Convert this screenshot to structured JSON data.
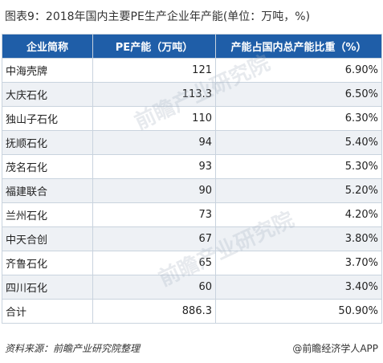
{
  "title": "图表9：2018年国内主要PE生产企业年产能(单位：万吨，%)",
  "table": {
    "headers": [
      "企业简称",
      "PE产能（万吨）",
      "产能占国内总产能比重（%）"
    ],
    "rows": [
      {
        "name": "中海壳牌",
        "capacity": "121",
        "share": "6.90%"
      },
      {
        "name": "大庆石化",
        "capacity": "113.3",
        "share": "6.50%"
      },
      {
        "name": "独山子石化",
        "capacity": "110",
        "share": "6.30%"
      },
      {
        "name": "抚顺石化",
        "capacity": "94",
        "share": "5.40%"
      },
      {
        "name": "茂名石化",
        "capacity": "93",
        "share": "5.30%"
      },
      {
        "name": "福建联合",
        "capacity": "90",
        "share": "5.20%"
      },
      {
        "name": "兰州石化",
        "capacity": "73",
        "share": "4.20%"
      },
      {
        "name": "中天合创",
        "capacity": "67",
        "share": "3.80%"
      },
      {
        "name": "齐鲁石化",
        "capacity": "65",
        "share": "3.70%"
      },
      {
        "name": "四川石化",
        "capacity": "60",
        "share": "3.40%"
      },
      {
        "name": "合计",
        "capacity": "886.3",
        "share": "50.90%"
      }
    ]
  },
  "footer": {
    "source": "资料来源：前瞻产业研究院整理",
    "brand": "@前瞻经济学人APP"
  },
  "watermark": "前瞻产业研究院"
}
